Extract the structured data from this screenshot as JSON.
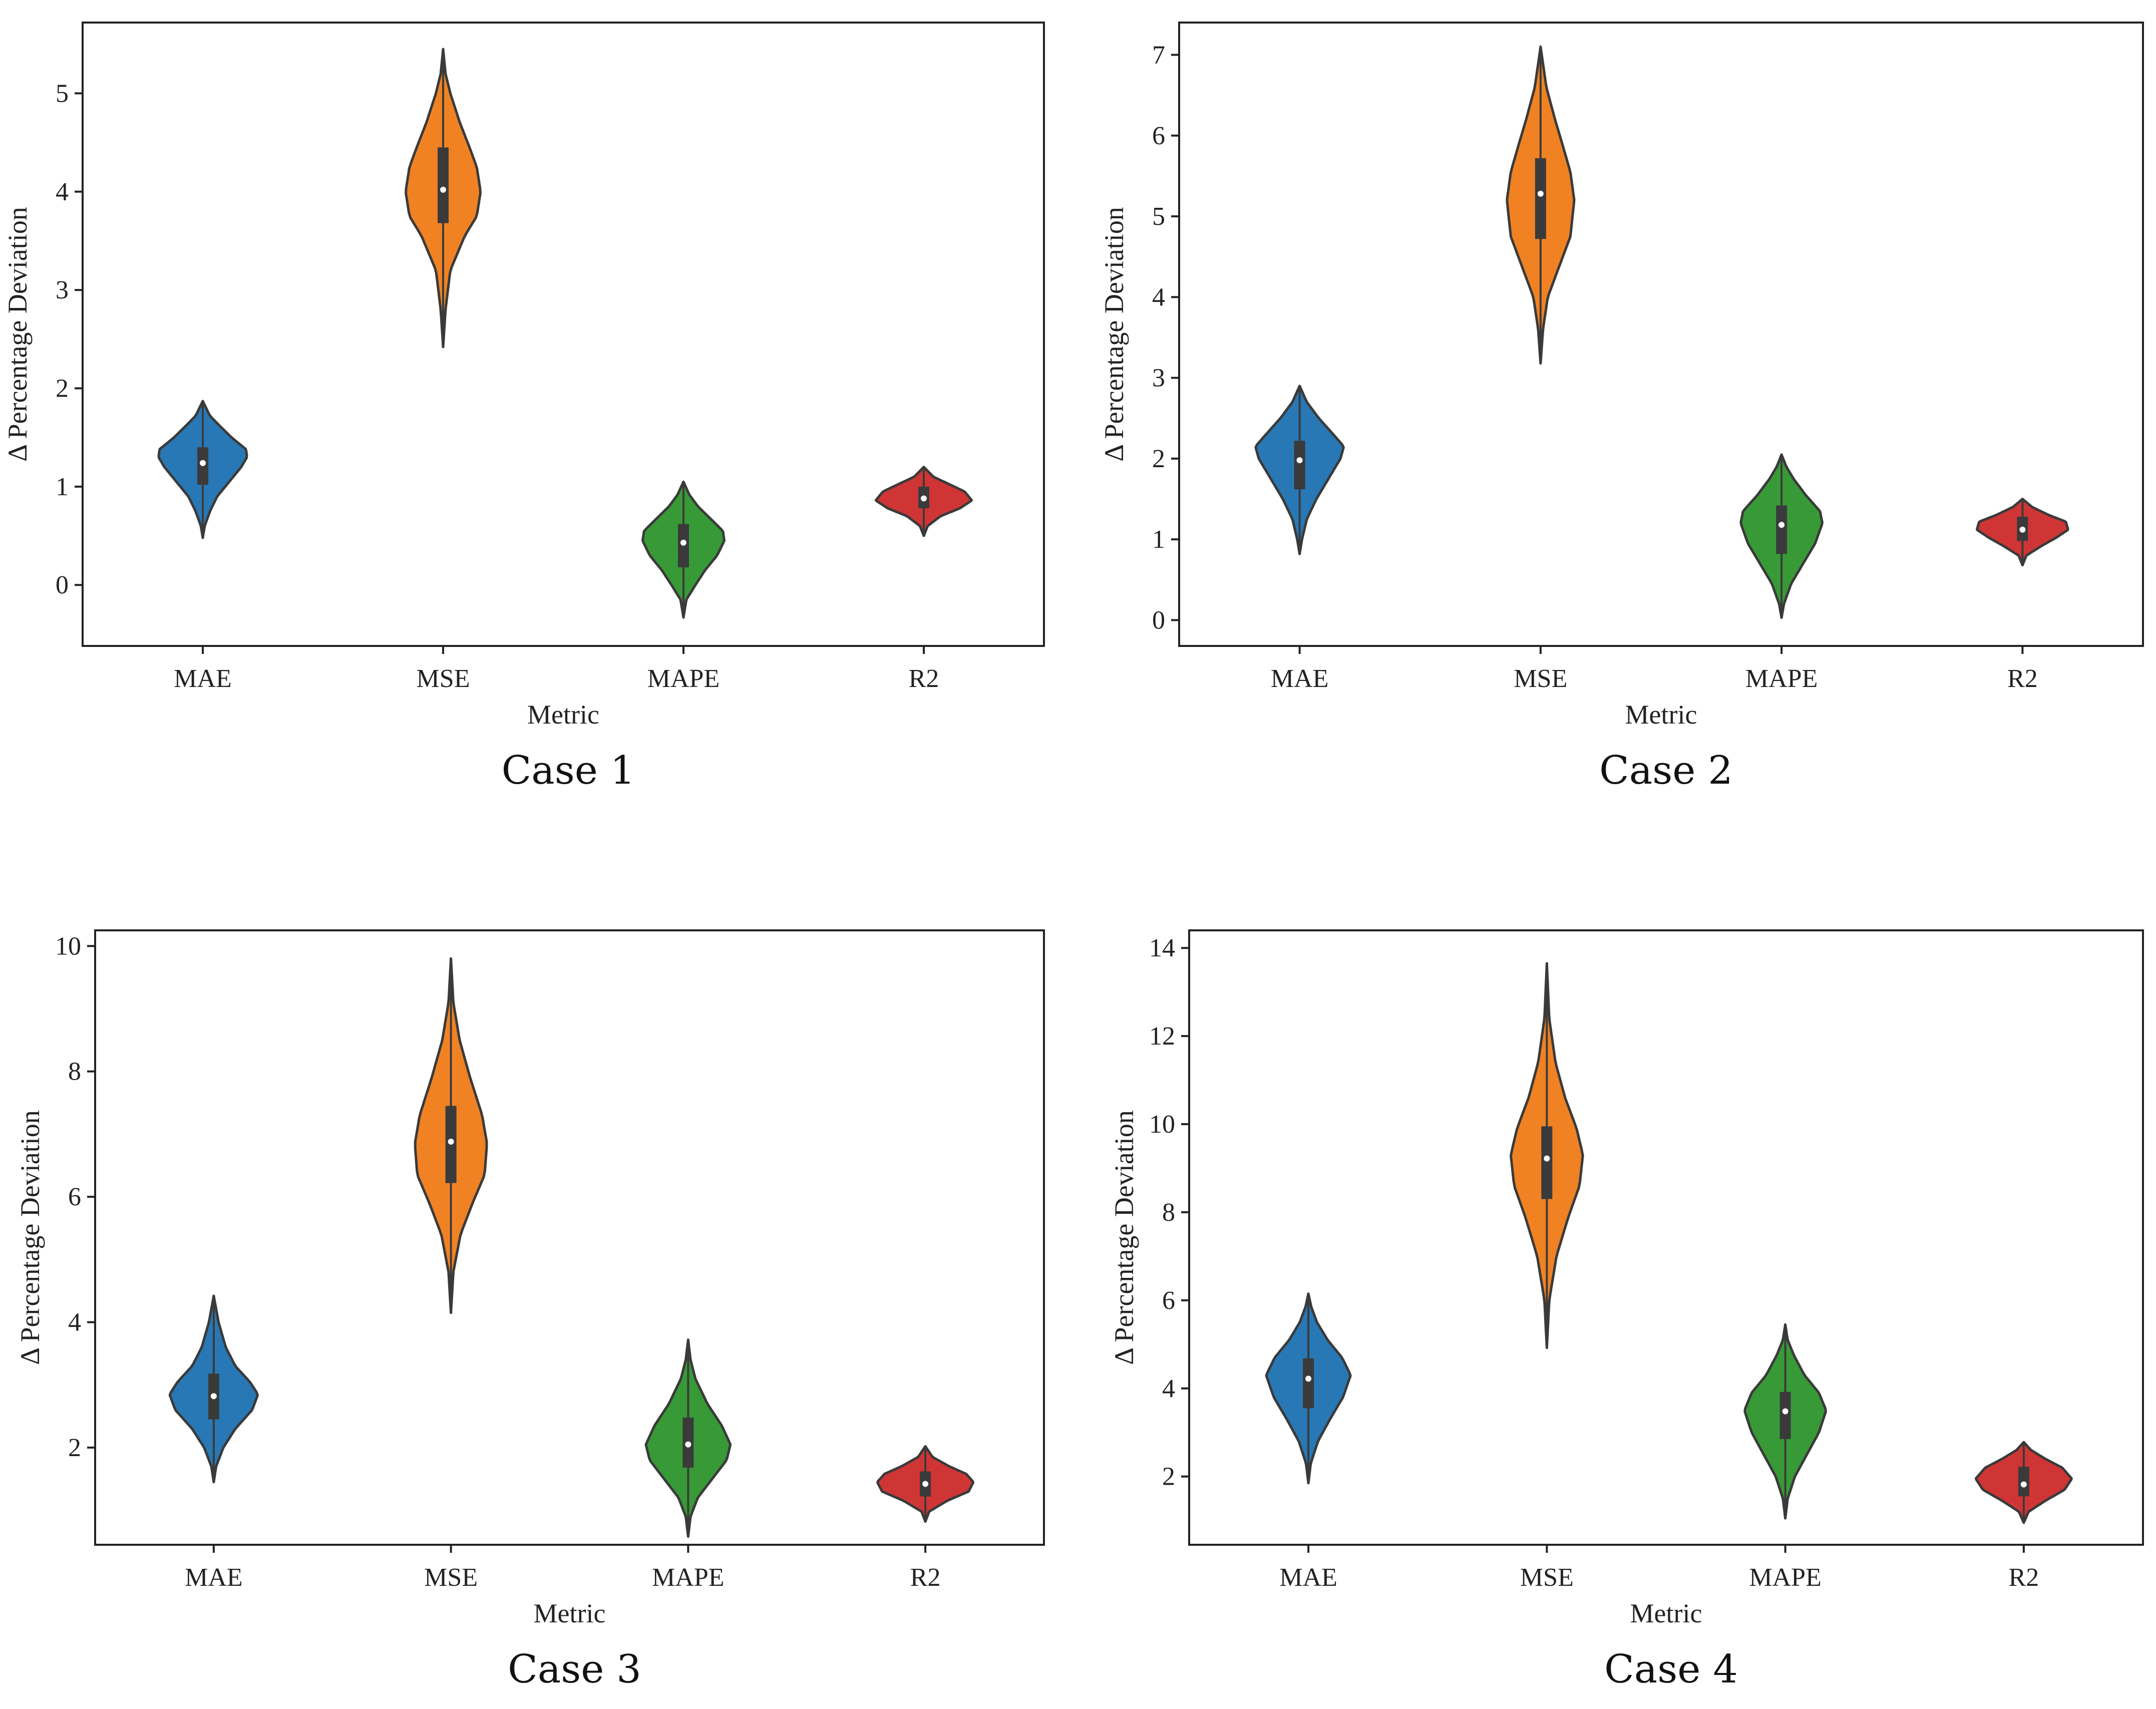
{
  "figure": {
    "metric_label": "Metric",
    "y_label": "Δ Percentage Deviation",
    "colors": {
      "MAE": "#2878b5",
      "MSE": "#f08224",
      "MAPE": "#379a37",
      "R2": "#d03535"
    }
  },
  "chart_data": [
    {
      "type": "violin",
      "caption": "Case 1",
      "xlabel": "Metric",
      "ylabel": "Δ Percentage Deviation",
      "categories": [
        "MAE",
        "MSE",
        "MAPE",
        "R2"
      ],
      "ylim": [
        -0.62,
        5.72
      ],
      "yticks": [
        0,
        1,
        2,
        3,
        4,
        5
      ],
      "tick_labels": [
        "0",
        "1",
        "2",
        "3",
        "4",
        "5"
      ],
      "violins": [
        {
          "name": "MAE",
          "min": 0.48,
          "q1": 1.02,
          "median": 1.24,
          "q3": 1.4,
          "max": 1.87,
          "profile": [
            [
              0.48,
              0.0
            ],
            [
              0.6,
              0.04
            ],
            [
              0.75,
              0.15
            ],
            [
              0.9,
              0.3
            ],
            [
              1.05,
              0.55
            ],
            [
              1.2,
              0.8
            ],
            [
              1.3,
              0.92
            ],
            [
              1.38,
              0.9
            ],
            [
              1.5,
              0.6
            ],
            [
              1.62,
              0.35
            ],
            [
              1.72,
              0.15
            ],
            [
              1.87,
              0.0
            ]
          ]
        },
        {
          "name": "MSE",
          "min": 2.42,
          "q1": 3.68,
          "median": 4.02,
          "q3": 4.45,
          "max": 5.45,
          "profile": [
            [
              2.42,
              0.0
            ],
            [
              2.8,
              0.05
            ],
            [
              3.2,
              0.15
            ],
            [
              3.55,
              0.45
            ],
            [
              3.75,
              0.7
            ],
            [
              4.0,
              0.78
            ],
            [
              4.25,
              0.7
            ],
            [
              4.45,
              0.55
            ],
            [
              4.7,
              0.35
            ],
            [
              5.0,
              0.15
            ],
            [
              5.2,
              0.05
            ],
            [
              5.45,
              0.0
            ]
          ]
        },
        {
          "name": "MAPE",
          "min": -0.33,
          "q1": 0.18,
          "median": 0.43,
          "q3": 0.62,
          "max": 1.05,
          "profile": [
            [
              -0.33,
              0.0
            ],
            [
              -0.15,
              0.06
            ],
            [
              0.0,
              0.25
            ],
            [
              0.15,
              0.45
            ],
            [
              0.3,
              0.7
            ],
            [
              0.45,
              0.85
            ],
            [
              0.55,
              0.82
            ],
            [
              0.68,
              0.55
            ],
            [
              0.8,
              0.3
            ],
            [
              0.92,
              0.12
            ],
            [
              1.05,
              0.0
            ]
          ]
        },
        {
          "name": "R2",
          "min": 0.5,
          "q1": 0.78,
          "median": 0.88,
          "q3": 1.0,
          "max": 1.2,
          "profile": [
            [
              0.5,
              0.0
            ],
            [
              0.6,
              0.08
            ],
            [
              0.7,
              0.35
            ],
            [
              0.78,
              0.75
            ],
            [
              0.86,
              1.0
            ],
            [
              0.95,
              0.85
            ],
            [
              1.02,
              0.55
            ],
            [
              1.1,
              0.2
            ],
            [
              1.2,
              0.0
            ]
          ]
        }
      ]
    },
    {
      "type": "violin",
      "caption": "Case 2",
      "xlabel": "Metric",
      "ylabel": "Δ Percentage Deviation",
      "categories": [
        "MAE",
        "MSE",
        "MAPE",
        "R2"
      ],
      "ylim": [
        -0.32,
        7.4
      ],
      "yticks": [
        0,
        1,
        2,
        3,
        4,
        5,
        6,
        7
      ],
      "tick_labels": [
        "0",
        "1",
        "2",
        "3",
        "4",
        "5",
        "6",
        "7"
      ],
      "violins": [
        {
          "name": "MAE",
          "min": 0.82,
          "q1": 1.62,
          "median": 1.98,
          "q3": 2.22,
          "max": 2.9,
          "profile": [
            [
              0.82,
              0.0
            ],
            [
              1.0,
              0.05
            ],
            [
              1.25,
              0.15
            ],
            [
              1.5,
              0.35
            ],
            [
              1.75,
              0.6
            ],
            [
              2.0,
              0.85
            ],
            [
              2.15,
              0.92
            ],
            [
              2.3,
              0.7
            ],
            [
              2.5,
              0.4
            ],
            [
              2.7,
              0.15
            ],
            [
              2.9,
              0.0
            ]
          ]
        },
        {
          "name": "MSE",
          "min": 3.18,
          "q1": 4.72,
          "median": 5.28,
          "q3": 5.72,
          "max": 7.1,
          "profile": [
            [
              3.18,
              0.0
            ],
            [
              3.6,
              0.05
            ],
            [
              4.0,
              0.15
            ],
            [
              4.4,
              0.4
            ],
            [
              4.75,
              0.62
            ],
            [
              5.2,
              0.7
            ],
            [
              5.55,
              0.62
            ],
            [
              5.9,
              0.45
            ],
            [
              6.2,
              0.3
            ],
            [
              6.6,
              0.12
            ],
            [
              7.1,
              0.0
            ]
          ]
        },
        {
          "name": "MAPE",
          "min": 0.03,
          "q1": 0.82,
          "median": 1.18,
          "q3": 1.42,
          "max": 2.05,
          "profile": [
            [
              0.03,
              0.0
            ],
            [
              0.2,
              0.05
            ],
            [
              0.45,
              0.2
            ],
            [
              0.7,
              0.45
            ],
            [
              0.95,
              0.7
            ],
            [
              1.2,
              0.85
            ],
            [
              1.35,
              0.8
            ],
            [
              1.55,
              0.5
            ],
            [
              1.75,
              0.25
            ],
            [
              1.9,
              0.1
            ],
            [
              2.05,
              0.0
            ]
          ]
        },
        {
          "name": "R2",
          "min": 0.68,
          "q1": 0.98,
          "median": 1.12,
          "q3": 1.28,
          "max": 1.5,
          "profile": [
            [
              0.68,
              0.0
            ],
            [
              0.8,
              0.08
            ],
            [
              0.92,
              0.4
            ],
            [
              1.02,
              0.7
            ],
            [
              1.12,
              0.95
            ],
            [
              1.22,
              0.9
            ],
            [
              1.3,
              0.55
            ],
            [
              1.4,
              0.2
            ],
            [
              1.5,
              0.0
            ]
          ]
        }
      ]
    },
    {
      "type": "violin",
      "caption": "Case 3",
      "xlabel": "Metric",
      "ylabel": "Δ Percentage Deviation",
      "categories": [
        "MAE",
        "MSE",
        "MAPE",
        "R2"
      ],
      "ylim": [
        0.45,
        10.25
      ],
      "yticks": [
        2,
        4,
        6,
        8,
        10
      ],
      "tick_labels": [
        "2",
        "4",
        "6",
        "8",
        "10"
      ],
      "violins": [
        {
          "name": "MAE",
          "min": 1.45,
          "q1": 2.45,
          "median": 2.82,
          "q3": 3.18,
          "max": 4.42,
          "profile": [
            [
              1.45,
              0.0
            ],
            [
              1.7,
              0.05
            ],
            [
              2.0,
              0.2
            ],
            [
              2.3,
              0.45
            ],
            [
              2.6,
              0.8
            ],
            [
              2.85,
              0.92
            ],
            [
              3.05,
              0.75
            ],
            [
              3.3,
              0.45
            ],
            [
              3.6,
              0.25
            ],
            [
              4.0,
              0.1
            ],
            [
              4.42,
              0.0
            ]
          ]
        },
        {
          "name": "MSE",
          "min": 4.15,
          "q1": 6.22,
          "median": 6.88,
          "q3": 7.45,
          "max": 9.8,
          "profile": [
            [
              4.15,
              0.0
            ],
            [
              4.8,
              0.05
            ],
            [
              5.4,
              0.2
            ],
            [
              5.9,
              0.45
            ],
            [
              6.35,
              0.7
            ],
            [
              6.85,
              0.75
            ],
            [
              7.3,
              0.65
            ],
            [
              7.9,
              0.4
            ],
            [
              8.5,
              0.18
            ],
            [
              9.1,
              0.05
            ],
            [
              9.8,
              0.0
            ]
          ]
        },
        {
          "name": "MAPE",
          "min": 0.58,
          "q1": 1.68,
          "median": 2.05,
          "q3": 2.48,
          "max": 3.72,
          "profile": [
            [
              0.58,
              0.0
            ],
            [
              0.9,
              0.05
            ],
            [
              1.2,
              0.2
            ],
            [
              1.5,
              0.5
            ],
            [
              1.8,
              0.8
            ],
            [
              2.05,
              0.88
            ],
            [
              2.35,
              0.7
            ],
            [
              2.7,
              0.4
            ],
            [
              3.1,
              0.15
            ],
            [
              3.4,
              0.05
            ],
            [
              3.72,
              0.0
            ]
          ]
        },
        {
          "name": "R2",
          "min": 0.82,
          "q1": 1.22,
          "median": 1.42,
          "q3": 1.62,
          "max": 2.02,
          "profile": [
            [
              0.82,
              0.0
            ],
            [
              0.98,
              0.08
            ],
            [
              1.15,
              0.45
            ],
            [
              1.3,
              0.9
            ],
            [
              1.45,
              1.0
            ],
            [
              1.58,
              0.85
            ],
            [
              1.7,
              0.5
            ],
            [
              1.85,
              0.15
            ],
            [
              2.02,
              0.0
            ]
          ]
        }
      ]
    },
    {
      "type": "violin",
      "caption": "Case 4",
      "xlabel": "Metric",
      "ylabel": "Δ Percentage Deviation",
      "categories": [
        "MAE",
        "MSE",
        "MAPE",
        "R2"
      ],
      "ylim": [
        0.45,
        14.4
      ],
      "yticks": [
        2,
        4,
        6,
        8,
        10,
        12,
        14
      ],
      "tick_labels": [
        "2",
        "4",
        "6",
        "8",
        "10",
        "12",
        "14"
      ],
      "violins": [
        {
          "name": "MAE",
          "min": 1.85,
          "q1": 3.55,
          "median": 4.22,
          "q3": 4.68,
          "max": 6.15,
          "profile": [
            [
              1.85,
              0.0
            ],
            [
              2.3,
              0.05
            ],
            [
              2.8,
              0.2
            ],
            [
              3.3,
              0.45
            ],
            [
              3.8,
              0.72
            ],
            [
              4.3,
              0.88
            ],
            [
              4.7,
              0.7
            ],
            [
              5.1,
              0.4
            ],
            [
              5.5,
              0.18
            ],
            [
              5.85,
              0.06
            ],
            [
              6.15,
              0.0
            ]
          ]
        },
        {
          "name": "MSE",
          "min": 4.92,
          "q1": 8.3,
          "median": 9.22,
          "q3": 9.95,
          "max": 13.65,
          "profile": [
            [
              4.92,
              0.0
            ],
            [
              6.0,
              0.05
            ],
            [
              7.0,
              0.2
            ],
            [
              7.9,
              0.45
            ],
            [
              8.6,
              0.68
            ],
            [
              9.3,
              0.75
            ],
            [
              9.9,
              0.62
            ],
            [
              10.6,
              0.38
            ],
            [
              11.4,
              0.18
            ],
            [
              12.4,
              0.05
            ],
            [
              13.65,
              0.0
            ]
          ]
        },
        {
          "name": "MAPE",
          "min": 1.05,
          "q1": 2.85,
          "median": 3.48,
          "q3": 3.92,
          "max": 5.45,
          "profile": [
            [
              1.05,
              0.0
            ],
            [
              1.5,
              0.05
            ],
            [
              2.0,
              0.2
            ],
            [
              2.5,
              0.45
            ],
            [
              3.0,
              0.7
            ],
            [
              3.5,
              0.85
            ],
            [
              3.9,
              0.7
            ],
            [
              4.3,
              0.4
            ],
            [
              4.75,
              0.18
            ],
            [
              5.1,
              0.05
            ],
            [
              5.45,
              0.0
            ]
          ]
        },
        {
          "name": "R2",
          "min": 0.95,
          "q1": 1.55,
          "median": 1.82,
          "q3": 2.22,
          "max": 2.78,
          "profile": [
            [
              0.95,
              0.0
            ],
            [
              1.2,
              0.1
            ],
            [
              1.45,
              0.45
            ],
            [
              1.7,
              0.85
            ],
            [
              1.95,
              1.0
            ],
            [
              2.2,
              0.8
            ],
            [
              2.4,
              0.45
            ],
            [
              2.6,
              0.15
            ],
            [
              2.78,
              0.0
            ]
          ]
        }
      ]
    }
  ]
}
